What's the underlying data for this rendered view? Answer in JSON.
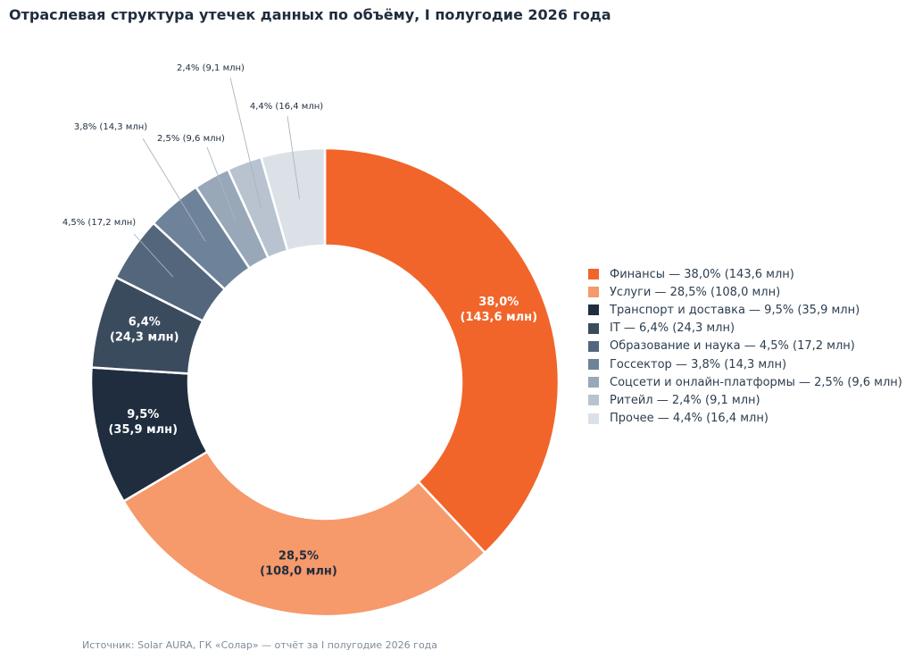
{
  "title": "Отраслевая структура утечек данных по объёму, I полугодие 2026 года",
  "source": "Источник: Solar AURA, ГК «Солар» — отчёт за I полугодие 2026 года",
  "chart_data": {
    "type": "pie",
    "donut": true,
    "start": "12 o'clock",
    "direction": "clockwise",
    "slices": [
      {
        "label": "Финансы",
        "percent": 38.0,
        "value": 143.6,
        "percent_text": "38,0%",
        "value_text": "(143,6 млн)",
        "legend": "Финансы — 38,0% (143,6 млн)",
        "color": "#f1652b",
        "label_mode": "inside",
        "label_color": "#ffffff"
      },
      {
        "label": "Услуги",
        "percent": 28.5,
        "value": 108.0,
        "percent_text": "28,5%",
        "value_text": "(108,0 млн)",
        "legend": "Услуги — 28,5% (108,0 млн)",
        "color": "#f6996b",
        "label_mode": "inside",
        "label_color": "#1f2d3d"
      },
      {
        "label": "Транспорт и доставка",
        "percent": 9.5,
        "value": 35.9,
        "percent_text": "9,5%",
        "value_text": "(35,9 млн)",
        "legend": "Транспорт и доставка — 9,5% (35,9 млн)",
        "color": "#1f2d3f",
        "label_mode": "inside",
        "label_color": "#ffffff"
      },
      {
        "label": "IT",
        "percent": 6.4,
        "value": 24.3,
        "percent_text": "6,4%",
        "value_text": "(24,3 млн)",
        "legend": "IT — 6,4% (24,3 млн)",
        "color": "#3b4b5e",
        "label_mode": "inside",
        "label_color": "#ffffff"
      },
      {
        "label": "Образование и наука",
        "percent": 4.5,
        "value": 17.2,
        "outside_text": "4,5% (17,2 млн)",
        "legend": "Образование и наука — 4,5% (17,2 млн)",
        "color": "#53667c",
        "label_mode": "outside"
      },
      {
        "label": "Госсектор",
        "percent": 3.8,
        "value": 14.3,
        "outside_text": "3,8% (14,3 млн)",
        "legend": "Госсектор — 3,8% (14,3 млн)",
        "color": "#6e8399",
        "label_mode": "outside"
      },
      {
        "label": "Соцсети и онлайн-платформы",
        "percent": 2.5,
        "value": 9.6,
        "outside_text": "2,5% (9,6 млн)",
        "legend": "Соцсети и онлайн-платформы — 2,5% (9,6 млн)",
        "color": "#98a8b8",
        "label_mode": "outside"
      },
      {
        "label": "Ритейл",
        "percent": 2.4,
        "value": 9.1,
        "outside_text": "2,4% (9,1 млн)",
        "legend": "Ритейл — 2,4% (9,1 млн)",
        "color": "#b8c3cf",
        "label_mode": "outside"
      },
      {
        "label": "Прочее",
        "percent": 4.4,
        "value": 16.4,
        "outside_text": "4,4% (16,4 млн)",
        "legend": "Прочее — 4,4% (16,4 млн)",
        "color": "#dce1e8",
        "label_mode": "outside"
      }
    ],
    "legend_position": "right"
  }
}
